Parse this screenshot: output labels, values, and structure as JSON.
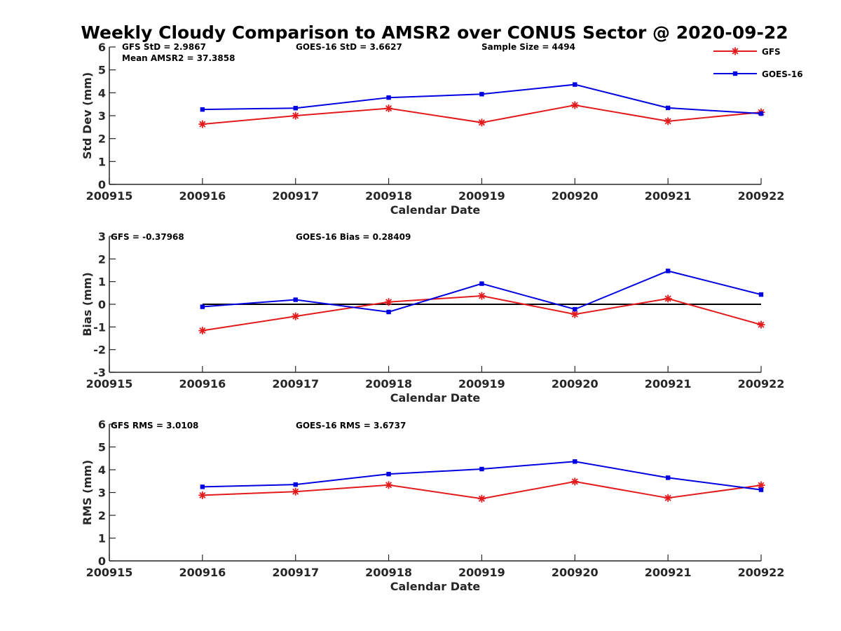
{
  "chart_data": {
    "title": "Weekly Cloudy Comparison to AMSR2 over CONUS Sector @ 2020-09-22",
    "x": [
      "200915",
      "200916",
      "200917",
      "200918",
      "200919",
      "200920",
      "200921",
      "200922"
    ],
    "legend": {
      "position": "top-right",
      "entries": [
        {
          "name": "GFS",
          "color": "#e31a1c",
          "marker": "asterisk"
        },
        {
          "name": "GOES-16",
          "color": "#0000e0",
          "marker": "square"
        }
      ]
    },
    "panels": [
      {
        "type": "line",
        "xlabel": "Calendar Date",
        "ylabel": "Std Dev (mm)",
        "ylim": [
          0,
          6
        ],
        "yticks": [
          "0",
          "1",
          "2",
          "3",
          "4",
          "5",
          "6"
        ],
        "grid": false,
        "reference_line": null,
        "annotations": [
          "GFS StD = 2.9867",
          "GOES-16 StD = 3.6627",
          "Sample Size = 4494",
          "Mean AMSR2 = 37.3858"
        ],
        "series": [
          {
            "name": "GFS",
            "x": [
              "200916",
              "200917",
              "200918",
              "200919",
              "200920",
              "200921",
              "200922"
            ],
            "values": [
              2.63,
              3.0,
              3.32,
              2.7,
              3.46,
              2.76,
              3.15
            ]
          },
          {
            "name": "GOES-16",
            "x": [
              "200916",
              "200917",
              "200918",
              "200919",
              "200920",
              "200921",
              "200922"
            ],
            "values": [
              3.27,
              3.33,
              3.79,
              3.94,
              4.36,
              3.34,
              3.09
            ]
          }
        ]
      },
      {
        "type": "line",
        "xlabel": "Calendar Date",
        "ylabel": "Bias (mm)",
        "ylim": [
          -3,
          3
        ],
        "yticks": [
          "-3",
          "-2",
          "-1",
          "0",
          "1",
          "2",
          "3"
        ],
        "grid": false,
        "reference_line": 0,
        "annotations": [
          "GFS = -0.37968",
          "GOES-16 Bias  = 0.28409"
        ],
        "series": [
          {
            "name": "GFS",
            "x": [
              "200916",
              "200917",
              "200918",
              "200919",
              "200920",
              "200921",
              "200922"
            ],
            "values": [
              -1.16,
              -0.53,
              0.1,
              0.37,
              -0.44,
              0.25,
              -0.9
            ]
          },
          {
            "name": "GOES-16",
            "x": [
              "200916",
              "200917",
              "200918",
              "200919",
              "200920",
              "200921",
              "200922"
            ],
            "values": [
              -0.11,
              0.2,
              -0.34,
              0.91,
              -0.22,
              1.47,
              0.43
            ]
          }
        ]
      },
      {
        "type": "line",
        "xlabel": "Calendar Date",
        "ylabel": "RMS (mm)",
        "ylim": [
          0,
          6
        ],
        "yticks": [
          "0",
          "1",
          "2",
          "3",
          "4",
          "5",
          "6"
        ],
        "grid": false,
        "reference_line": null,
        "annotations": [
          "GFS RMS = 3.0108",
          "GOES-16 RMS = 3.6737"
        ],
        "series": [
          {
            "name": "GFS",
            "x": [
              "200916",
              "200917",
              "200918",
              "200919",
              "200920",
              "200921",
              "200922"
            ],
            "values": [
              2.88,
              3.04,
              3.33,
              2.73,
              3.48,
              2.76,
              3.32
            ]
          },
          {
            "name": "GOES-16",
            "x": [
              "200916",
              "200917",
              "200918",
              "200919",
              "200920",
              "200921",
              "200922"
            ],
            "values": [
              3.25,
              3.35,
              3.81,
              4.03,
              4.36,
              3.65,
              3.12
            ]
          }
        ]
      }
    ]
  }
}
